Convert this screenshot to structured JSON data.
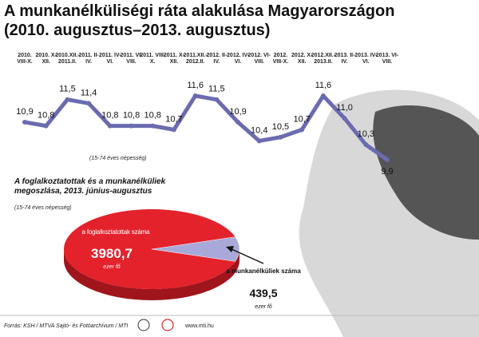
{
  "title": "A munkanélküliségi ráta alakulása Magyarországon",
  "subtitle": "(2010. augusztus–2013. augusztus)",
  "chart_data": [
    {
      "type": "line",
      "note": "(15-74 éves népesség)",
      "color": "#6b6bb0",
      "categories": [
        "2010. VIII-X.",
        "2010. X-XII.",
        "2010.XII.- 2011.II.",
        "2011. II-IV.",
        "2011. IV-VI.",
        "2011. VI-VIII.",
        "2011. VIII-X.",
        "2011. X-XII.",
        "2011.XII.- 2012.II.",
        "2012. II-IV.",
        "2012. IV-VI.",
        "2012. VI-VIII.",
        "2012. VIII-X.",
        "2012. X-XII.",
        "2012.XII.- 2013.II.",
        "2013. II-IV.",
        "2013. IV-VI.",
        "2013. VI-VIII."
      ],
      "values": [
        10.9,
        10.8,
        11.5,
        11.4,
        10.8,
        10.8,
        10.8,
        10.7,
        11.6,
        11.5,
        10.9,
        10.4,
        10.5,
        10.7,
        11.6,
        11.0,
        10.3,
        9.9
      ],
      "value_labels": [
        "10,9",
        "10,8",
        "11,5",
        "11,4",
        "10,8",
        "10,8",
        "10,8",
        "10,7",
        "11,6",
        "11,5",
        "10,9",
        "10,4",
        "10,5",
        "10,7",
        "11,6",
        "11,0",
        "10,3",
        "9,9"
      ]
    },
    {
      "type": "pie",
      "title": "A foglalkoztatottak és a munkanélküliek megoszlása, 2013. június-augusztus",
      "note": "(15-74 éves népesség)",
      "unit": "ezer fő",
      "categories": [
        "a foglalkoztatottak száma",
        "a munkanélküliek száma"
      ],
      "values": [
        3980.7,
        439.5
      ],
      "value_labels": [
        "3980,7",
        "439,5"
      ],
      "colors": [
        "#e3222b",
        "#a9a9d9"
      ]
    }
  ],
  "footer": {
    "source": "Forrás: KSH / MTVA Sajtó- és Fotóarchívum / MTI",
    "url": "www.mti.hu"
  }
}
